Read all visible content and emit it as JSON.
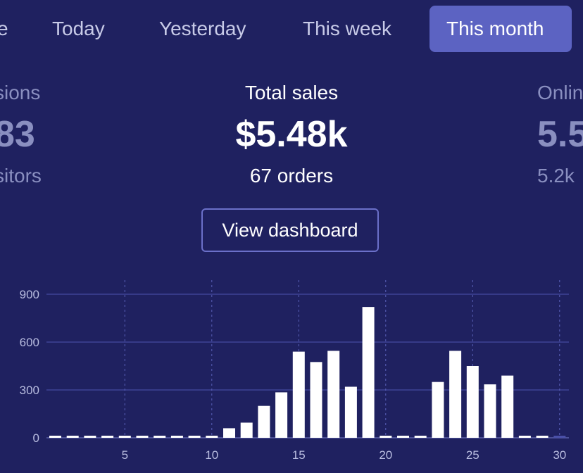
{
  "tabs": [
    {
      "label": "e",
      "active": false
    },
    {
      "label": "Today",
      "active": false
    },
    {
      "label": "Yesterday",
      "active": false
    },
    {
      "label": "This week",
      "active": false
    },
    {
      "label": "This month",
      "active": true
    }
  ],
  "stats": {
    "left": {
      "label": "sions",
      "value": "83",
      "sub": "sitors"
    },
    "center": {
      "label": "Total sales",
      "value": "$5.48k",
      "sub": "67 orders"
    },
    "right": {
      "label": "Onlin",
      "value": "5.5",
      "sub": "5.2k"
    }
  },
  "view_dashboard_label": "View dashboard",
  "colors": {
    "background": "#1f2160",
    "accent": "#5c63c2",
    "bar": "#ffffff"
  },
  "chart_data": {
    "type": "bar",
    "x": [
      1,
      2,
      3,
      4,
      5,
      6,
      7,
      8,
      9,
      10,
      11,
      12,
      13,
      14,
      15,
      16,
      17,
      18,
      19,
      20,
      21,
      22,
      23,
      24,
      25,
      26,
      27,
      28,
      29,
      30
    ],
    "values": [
      10,
      10,
      10,
      10,
      10,
      10,
      10,
      10,
      10,
      10,
      60,
      95,
      200,
      285,
      540,
      475,
      545,
      320,
      820,
      10,
      10,
      10,
      350,
      545,
      450,
      335,
      390,
      10,
      10,
      10
    ],
    "xticks": [
      5,
      10,
      15,
      20,
      25,
      30
    ],
    "yticks": [
      0,
      300,
      600,
      900
    ],
    "ylim": [
      0,
      1000
    ]
  }
}
